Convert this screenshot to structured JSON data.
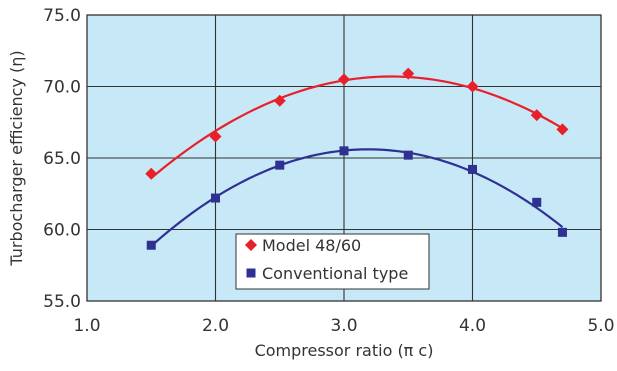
{
  "chart_data": {
    "type": "line",
    "xlabel": "Compressor ratio (π c)",
    "ylabel": "Turbocharger efficiency (η)",
    "xlim": [
      1.0,
      5.0
    ],
    "ylim": [
      55.0,
      75.0
    ],
    "x_ticks": [
      "1.0",
      "2.0",
      "3.0",
      "4.0",
      "5.0"
    ],
    "y_ticks": [
      "55.0",
      "60.0",
      "65.0",
      "70.0",
      "75.0"
    ],
    "x_tick_values": [
      1.0,
      2.0,
      3.0,
      4.0,
      5.0
    ],
    "y_tick_values": [
      55.0,
      60.0,
      65.0,
      70.0,
      75.0
    ],
    "grid": true,
    "plot_background": "#c6e8f7",
    "legend_position": "bottom-center",
    "series": [
      {
        "name": "Model 48/60",
        "marker": "diamond",
        "color": "#e8202a",
        "x": [
          1.5,
          2.0,
          2.5,
          3.0,
          3.5,
          4.0,
          4.5,
          4.7
        ],
        "y": [
          63.9,
          66.5,
          69.0,
          70.5,
          70.9,
          70.0,
          68.0,
          67.0
        ]
      },
      {
        "name": "Conventional type",
        "marker": "square",
        "color": "#2e3192",
        "x": [
          1.5,
          2.0,
          2.5,
          3.0,
          3.5,
          4.0,
          4.5,
          4.7
        ],
        "y": [
          58.9,
          62.2,
          64.5,
          65.5,
          65.2,
          64.2,
          61.9,
          59.8
        ]
      }
    ]
  }
}
